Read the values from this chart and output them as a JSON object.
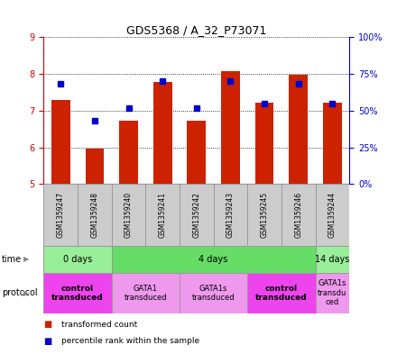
{
  "title": "GDS5368 / A_32_P73071",
  "samples": [
    "GSM1359247",
    "GSM1359248",
    "GSM1359240",
    "GSM1359241",
    "GSM1359242",
    "GSM1359243",
    "GSM1359245",
    "GSM1359246",
    "GSM1359244"
  ],
  "transformed_counts": [
    7.28,
    5.96,
    6.73,
    7.78,
    6.73,
    8.08,
    7.22,
    7.98,
    7.22
  ],
  "percentile_ranks": [
    68,
    43,
    52,
    70,
    52,
    70,
    55,
    68,
    55
  ],
  "bar_bottom": 5.0,
  "ylim": [
    5,
    9
  ],
  "yticks_left": [
    5,
    6,
    7,
    8,
    9
  ],
  "yticks_right": [
    0,
    25,
    50,
    75,
    100
  ],
  "bar_color": "#cc2200",
  "dot_color": "#0000cc",
  "bar_width": 0.55,
  "time_groups": [
    {
      "label": "0 days",
      "start": 0,
      "end": 2,
      "color": "#99ee99"
    },
    {
      "label": "4 days",
      "start": 2,
      "end": 8,
      "color": "#66dd66"
    },
    {
      "label": "14 days",
      "start": 8,
      "end": 9,
      "color": "#99ee99"
    }
  ],
  "protocol_groups": [
    {
      "label": "control\ntransduced",
      "start": 0,
      "end": 2,
      "color": "#ee44ee",
      "bold": true
    },
    {
      "label": "GATA1\ntransduced",
      "start": 2,
      "end": 4,
      "color": "#ee99ee",
      "bold": false
    },
    {
      "label": "GATA1s\ntransduced",
      "start": 4,
      "end": 6,
      "color": "#ee99ee",
      "bold": false
    },
    {
      "label": "control\ntransduced",
      "start": 6,
      "end": 8,
      "color": "#ee44ee",
      "bold": true
    },
    {
      "label": "GATA1s\ntransdu\nced",
      "start": 8,
      "end": 9,
      "color": "#ee99ee",
      "bold": false
    }
  ],
  "left_axis_color": "#cc0000",
  "right_axis_color": "#0000cc",
  "sample_box_color": "#cccccc",
  "background_color": "#ffffff"
}
